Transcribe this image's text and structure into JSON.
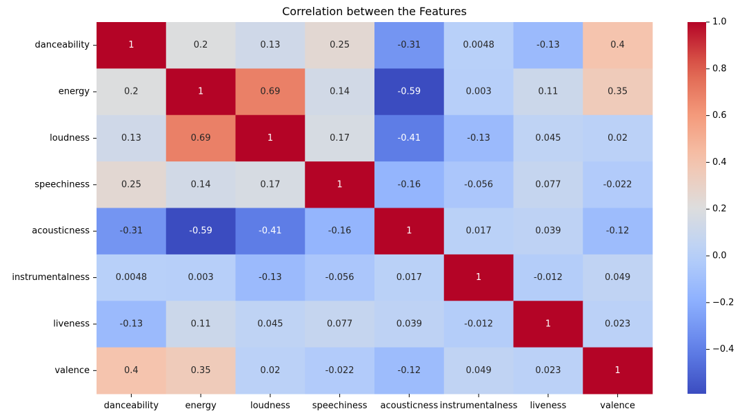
{
  "chart_data": {
    "type": "heatmap",
    "title": "Correlation between the Features",
    "xlabel": "",
    "ylabel": "",
    "rows": [
      "danceability",
      "energy",
      "loudness",
      "speechiness",
      "acousticness",
      "instrumentalness",
      "liveness",
      "valence"
    ],
    "columns": [
      "danceability",
      "energy",
      "loudness",
      "speechiness",
      "acousticness",
      "instrumentalness",
      "liveness",
      "valence"
    ],
    "values": [
      [
        1,
        0.2,
        0.13,
        0.25,
        -0.31,
        0.0048,
        -0.13,
        0.4
      ],
      [
        0.2,
        1,
        0.69,
        0.14,
        -0.59,
        0.003,
        0.11,
        0.35
      ],
      [
        0.13,
        0.69,
        1,
        0.17,
        -0.41,
        -0.13,
        0.045,
        0.02
      ],
      [
        0.25,
        0.14,
        0.17,
        1,
        -0.16,
        -0.056,
        0.077,
        -0.022
      ],
      [
        -0.31,
        -0.59,
        -0.41,
        -0.16,
        1,
        0.017,
        0.039,
        -0.12
      ],
      [
        0.0048,
        0.003,
        -0.13,
        -0.056,
        0.017,
        1,
        -0.012,
        0.049
      ],
      [
        -0.13,
        0.11,
        0.045,
        0.077,
        0.039,
        -0.012,
        1,
        0.023
      ],
      [
        0.4,
        0.35,
        0.02,
        -0.022,
        -0.12,
        0.049,
        0.023,
        1
      ]
    ],
    "annotations": [
      [
        "1",
        "0.2",
        "0.13",
        "0.25",
        "-0.31",
        "0.0048",
        "-0.13",
        "0.4"
      ],
      [
        "0.2",
        "1",
        "0.69",
        "0.14",
        "-0.59",
        "0.003",
        "0.11",
        "0.35"
      ],
      [
        "0.13",
        "0.69",
        "1",
        "0.17",
        "-0.41",
        "-0.13",
        "0.045",
        "0.02"
      ],
      [
        "0.25",
        "0.14",
        "0.17",
        "1",
        "-0.16",
        "-0.056",
        "0.077",
        "-0.022"
      ],
      [
        "-0.31",
        "-0.59",
        "-0.41",
        "-0.16",
        "1",
        "0.017",
        "0.039",
        "-0.12"
      ],
      [
        "0.0048",
        "0.003",
        "-0.13",
        "-0.056",
        "0.017",
        "1",
        "-0.012",
        "0.049"
      ],
      [
        "-0.13",
        "0.11",
        "0.045",
        "0.077",
        "0.039",
        "-0.012",
        "1",
        "0.023"
      ],
      [
        "0.4",
        "0.35",
        "0.02",
        "-0.022",
        "-0.12",
        "0.049",
        "0.023",
        "1"
      ]
    ],
    "colormap": "coolwarm",
    "colorbar": {
      "range": [
        -0.59,
        1.0
      ],
      "ticks": [
        -0.4,
        -0.2,
        0.0,
        0.2,
        0.4,
        0.6,
        0.8,
        1.0
      ],
      "tick_labels": [
        "−0.4",
        "−0.2",
        "0.0",
        "0.2",
        "0.4",
        "0.6",
        "0.8",
        "1.0"
      ]
    },
    "grid": false
  }
}
